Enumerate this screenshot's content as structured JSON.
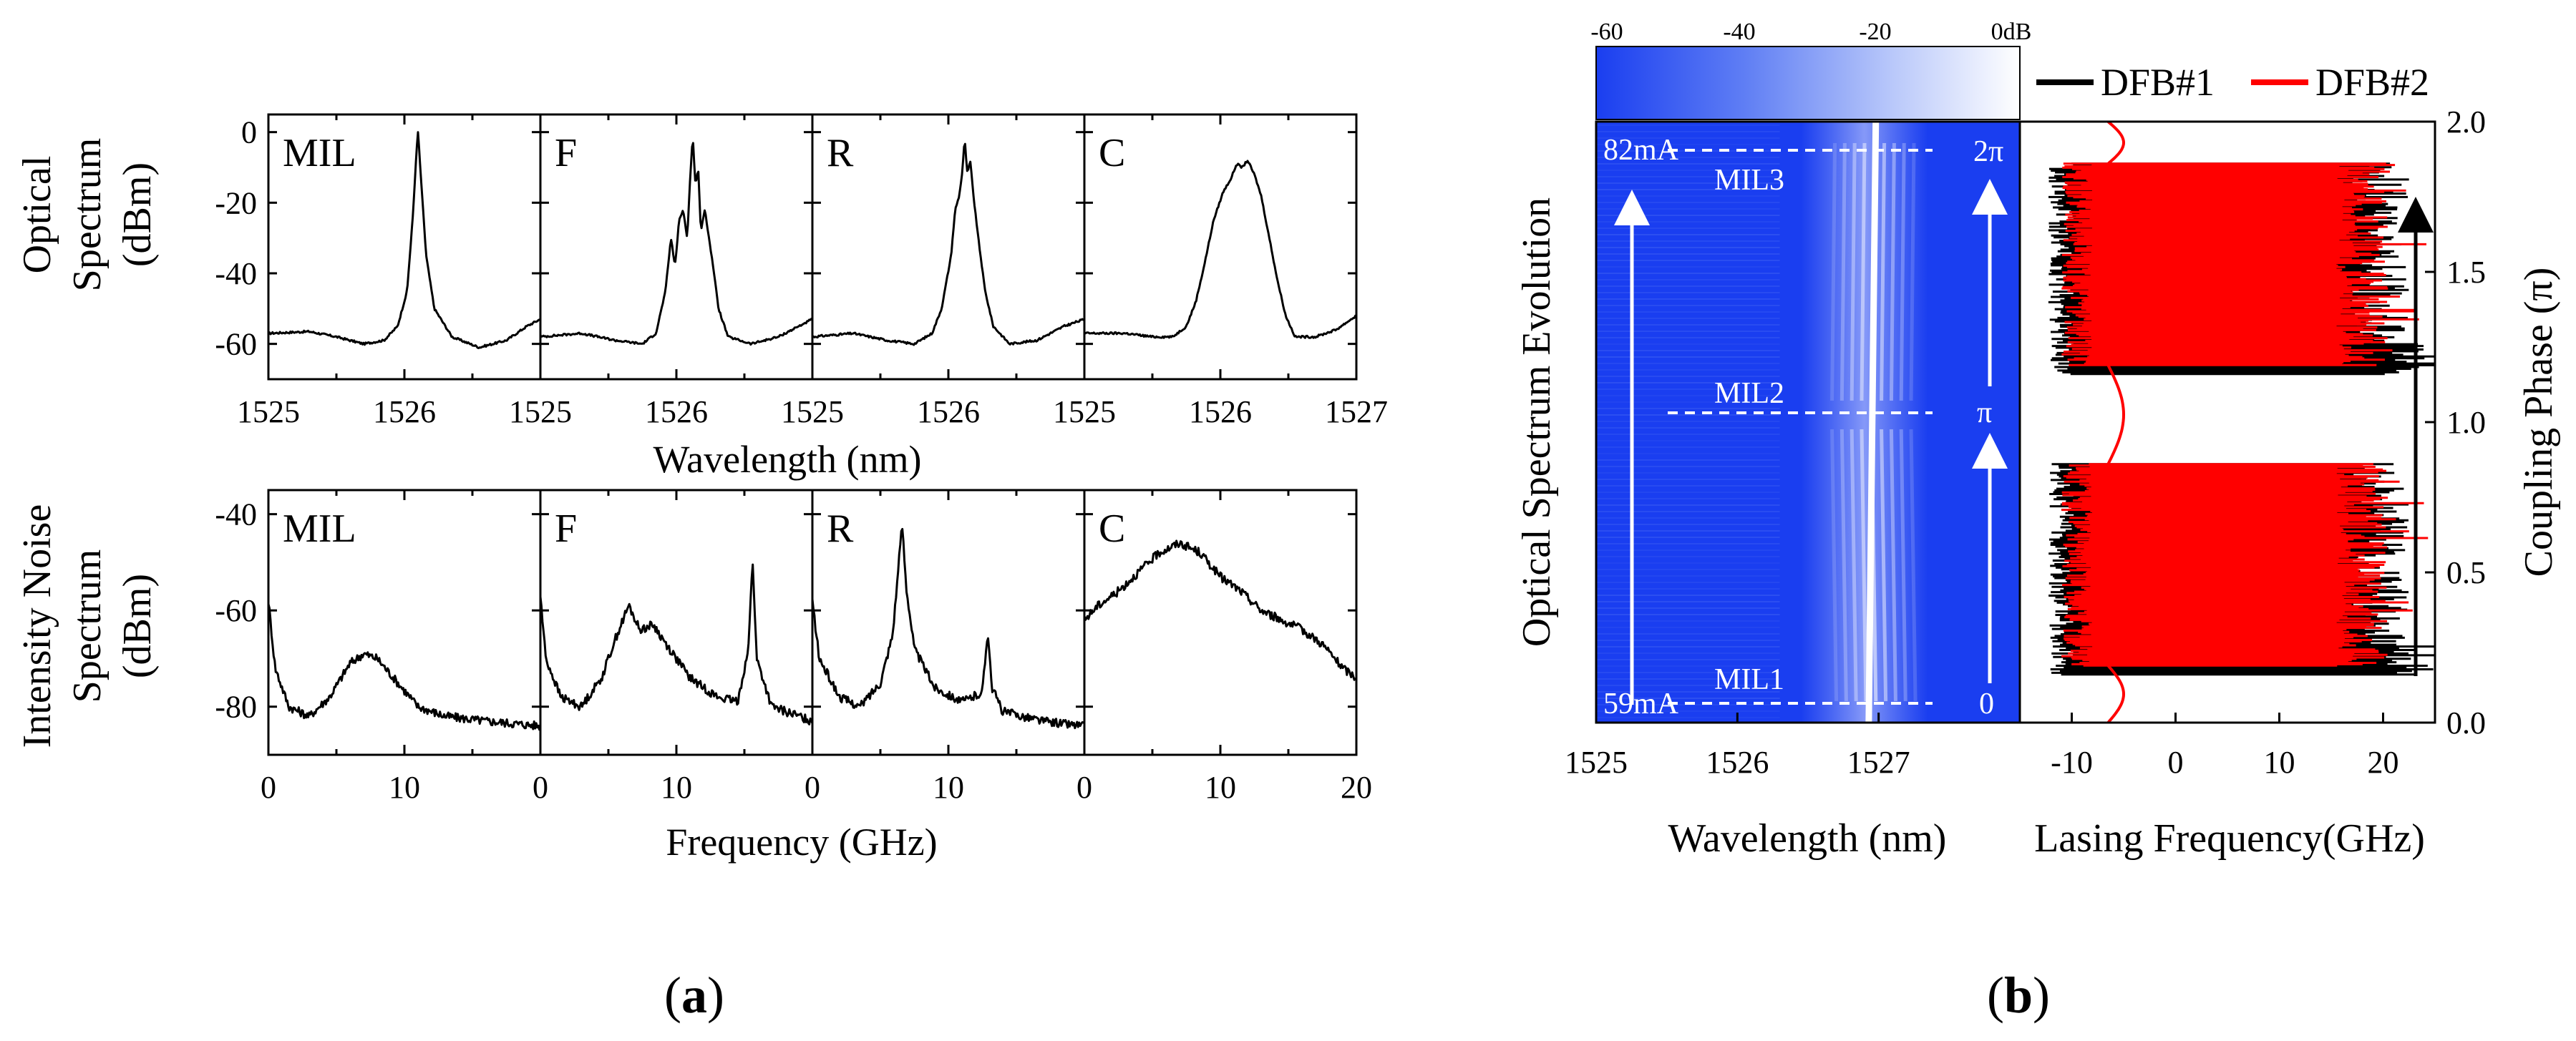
{
  "chart_data": [
    {
      "type": "line",
      "id": "a-top",
      "ylabel": [
        "Optical",
        "Spectrum",
        "(dBm)"
      ],
      "xlabel": "Wavelength (nm)",
      "ylim": [
        -70,
        5
      ],
      "yticks": [
        0,
        -20,
        -40,
        -60
      ],
      "panels": [
        {
          "label": "MIL",
          "xlim": [
            1525,
            1527
          ],
          "xticks_shown": [
            1525,
            1526
          ],
          "points": [
            [
              1525,
              -57
            ],
            [
              1525.3,
              -56.5
            ],
            [
              1525.5,
              -58
            ],
            [
              1525.7,
              -60
            ],
            [
              1525.85,
              -59
            ],
            [
              1525.95,
              -55
            ],
            [
              1526.02,
              -45
            ],
            [
              1526.06,
              -25
            ],
            [
              1526.09,
              -5
            ],
            [
              1526.1,
              0
            ],
            [
              1526.12,
              -12
            ],
            [
              1526.16,
              -35
            ],
            [
              1526.22,
              -50
            ],
            [
              1526.35,
              -58
            ],
            [
              1526.55,
              -61
            ],
            [
              1526.75,
              -59
            ],
            [
              1526.9,
              -55
            ],
            [
              1527,
              -53
            ]
          ]
        },
        {
          "label": "F",
          "xlim": [
            1525,
            1527
          ],
          "xticks_shown": [
            1525,
            1526
          ],
          "points": [
            [
              1525,
              -58
            ],
            [
              1525.3,
              -57
            ],
            [
              1525.55,
              -59
            ],
            [
              1525.75,
              -60
            ],
            [
              1525.85,
              -57
            ],
            [
              1525.92,
              -45
            ],
            [
              1525.96,
              -30
            ],
            [
              1525.99,
              -38
            ],
            [
              1526.02,
              -25
            ],
            [
              1526.05,
              -22
            ],
            [
              1526.08,
              -30
            ],
            [
              1526.1,
              -14
            ],
            [
              1526.12,
              -1
            ],
            [
              1526.14,
              -15
            ],
            [
              1526.16,
              -10
            ],
            [
              1526.18,
              -28
            ],
            [
              1526.21,
              -22
            ],
            [
              1526.24,
              -30
            ],
            [
              1526.27,
              -38
            ],
            [
              1526.31,
              -50
            ],
            [
              1526.38,
              -58
            ],
            [
              1526.55,
              -60
            ],
            [
              1526.75,
              -58
            ],
            [
              1526.9,
              -55
            ],
            [
              1527,
              -53
            ]
          ]
        },
        {
          "label": "R",
          "xlim": [
            1525,
            1527
          ],
          "xticks_shown": [
            1525,
            1526
          ],
          "points": [
            [
              1525,
              -58
            ],
            [
              1525.3,
              -57
            ],
            [
              1525.55,
              -59
            ],
            [
              1525.75,
              -60
            ],
            [
              1525.88,
              -57
            ],
            [
              1525.95,
              -50
            ],
            [
              1526.02,
              -35
            ],
            [
              1526.05,
              -22
            ],
            [
              1526.08,
              -18
            ],
            [
              1526.1,
              -12
            ],
            [
              1526.12,
              -2
            ],
            [
              1526.14,
              -12
            ],
            [
              1526.16,
              -8
            ],
            [
              1526.19,
              -20
            ],
            [
              1526.22,
              -30
            ],
            [
              1526.27,
              -45
            ],
            [
              1526.33,
              -55
            ],
            [
              1526.45,
              -60
            ],
            [
              1526.65,
              -59
            ],
            [
              1526.85,
              -55
            ],
            [
              1527,
              -53
            ]
          ]
        },
        {
          "label": "C",
          "xlim": [
            1525,
            1527
          ],
          "xticks_shown": [
            1525,
            1526,
            1527
          ],
          "points": [
            [
              1525,
              -57
            ],
            [
              1525.3,
              -57
            ],
            [
              1525.5,
              -58
            ],
            [
              1525.65,
              -58
            ],
            [
              1525.75,
              -55
            ],
            [
              1525.82,
              -48
            ],
            [
              1525.88,
              -38
            ],
            [
              1525.95,
              -25
            ],
            [
              1526.02,
              -17
            ],
            [
              1526.08,
              -13
            ],
            [
              1526.12,
              -9
            ],
            [
              1526.16,
              -10
            ],
            [
              1526.2,
              -8
            ],
            [
              1526.25,
              -12
            ],
            [
              1526.3,
              -18
            ],
            [
              1526.36,
              -30
            ],
            [
              1526.42,
              -42
            ],
            [
              1526.48,
              -52
            ],
            [
              1526.55,
              -58
            ],
            [
              1526.7,
              -58
            ],
            [
              1526.85,
              -56
            ],
            [
              1527,
              -52
            ]
          ]
        }
      ]
    },
    {
      "type": "line",
      "id": "a-bottom",
      "ylabel": [
        "Intensity Noise",
        "Spectrum",
        "(dBm)"
      ],
      "xlabel": "Frequency (GHz)",
      "ylim": [
        -90,
        -35
      ],
      "yticks": [
        -40,
        -60,
        -80
      ],
      "panels": [
        {
          "label": "MIL",
          "xlim": [
            0,
            20
          ],
          "xticks_shown": [
            0,
            10
          ],
          "points": [
            [
              0,
              -58
            ],
            [
              0.5,
              -72
            ],
            [
              1.5,
              -80
            ],
            [
              3,
              -82
            ],
            [
              4.5,
              -78
            ],
            [
              6,
              -71
            ],
            [
              7,
              -69
            ],
            [
              8,
              -70
            ],
            [
              9.5,
              -75
            ],
            [
              11,
              -80
            ],
            [
              13,
              -82
            ],
            [
              16,
              -83
            ],
            [
              20,
              -84
            ]
          ]
        },
        {
          "label": "F",
          "xlim": [
            0,
            20
          ],
          "xticks_shown": [
            0,
            10
          ],
          "points": [
            [
              0,
              -57
            ],
            [
              0.4,
              -70
            ],
            [
              1.5,
              -78
            ],
            [
              3,
              -80
            ],
            [
              4.5,
              -74
            ],
            [
              5.5,
              -66
            ],
            [
              6.5,
              -59
            ],
            [
              7.3,
              -64
            ],
            [
              8.3,
              -63
            ],
            [
              9,
              -66
            ],
            [
              11,
              -74
            ],
            [
              13,
              -78
            ],
            [
              14.5,
              -79
            ],
            [
              15.3,
              -68
            ],
            [
              15.6,
              -49
            ],
            [
              15.9,
              -70
            ],
            [
              17,
              -80
            ],
            [
              20,
              -83
            ]
          ]
        },
        {
          "label": "R",
          "xlim": [
            0,
            20
          ],
          "xticks_shown": [
            0,
            10
          ],
          "points": [
            [
              0,
              -58
            ],
            [
              0.5,
              -70
            ],
            [
              2,
              -78
            ],
            [
              3.5,
              -80
            ],
            [
              5,
              -75
            ],
            [
              5.9,
              -65
            ],
            [
              6.3,
              -52
            ],
            [
              6.6,
              -42
            ],
            [
              6.9,
              -55
            ],
            [
              7.5,
              -68
            ],
            [
              9,
              -76
            ],
            [
              11,
              -79
            ],
            [
              12.5,
              -77
            ],
            [
              12.9,
              -64
            ],
            [
              13.2,
              -76
            ],
            [
              14,
              -81
            ],
            [
              17,
              -83
            ],
            [
              20,
              -84
            ]
          ]
        },
        {
          "label": "C",
          "xlim": [
            0,
            20
          ],
          "xticks_shown": [
            0,
            10,
            20
          ],
          "points": [
            [
              0,
              -62
            ],
            [
              1,
              -59
            ],
            [
              2.5,
              -56
            ],
            [
              4,
              -52
            ],
            [
              5.5,
              -48
            ],
            [
              7,
              -46
            ],
            [
              8.5,
              -48
            ],
            [
              10,
              -53
            ],
            [
              11.5,
              -56
            ],
            [
              13,
              -60
            ],
            [
              14.5,
              -62
            ],
            [
              16,
              -64
            ],
            [
              17.5,
              -67
            ],
            [
              19,
              -72
            ],
            [
              20,
              -74
            ]
          ]
        }
      ]
    },
    {
      "type": "heatmap",
      "id": "b-left",
      "ylabel": "Optical Spectrum Evolution",
      "xlabel": "Wavelength (nm)",
      "xlim": [
        1525,
        1528
      ],
      "xticks": [
        1525,
        1526,
        1527
      ],
      "colorbar": {
        "ticks": [
          "-60",
          "-40",
          "-20",
          "0dB"
        ],
        "range": [
          -60,
          0
        ],
        "low_color": "#1a3ef0",
        "high_color": "#ffffff"
      },
      "annotations": {
        "top_current": "82mA",
        "bottom_current": "59mA",
        "mil3": "MIL3",
        "mil2": "MIL2",
        "mil1": "MIL1",
        "phase_top": "2π",
        "phase_mid": "π",
        "phase_bottom": "0"
      }
    },
    {
      "type": "scatter",
      "id": "b-right",
      "xlabel": "Lasing Frequency(GHz)",
      "ylabel": "Coupling Phase (π)",
      "xlim": [
        -15,
        25
      ],
      "xticks": [
        -10,
        0,
        10,
        20
      ],
      "ylim": [
        0,
        2.0
      ],
      "yticks": [
        "0.0",
        "0.5",
        "1.0",
        "1.5",
        "2.0"
      ],
      "legend": [
        {
          "name": "DFB#1",
          "color": "#000000"
        },
        {
          "name": "DFB#2",
          "color": "#ff0000"
        }
      ]
    }
  ],
  "figure_labels": {
    "a": "a",
    "b": "b"
  }
}
